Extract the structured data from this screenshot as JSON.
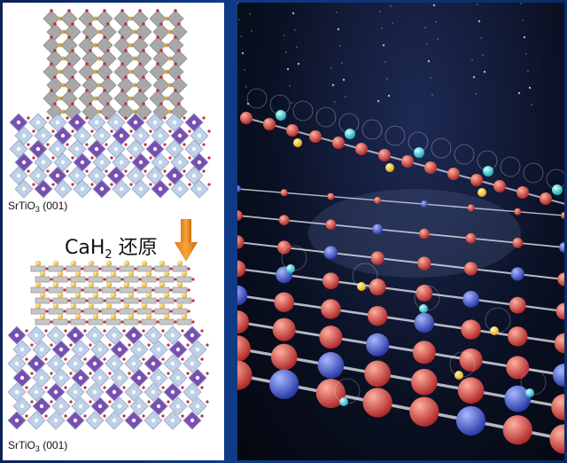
{
  "left_panel": {
    "top_label": {
      "prefix": "SrTiO",
      "sub": "3",
      "suffix": " (001)"
    },
    "reaction": {
      "prefix": "CaH",
      "sub": "2",
      "suffix": " 还原"
    },
    "bottom_label": {
      "prefix": "SrTiO",
      "sub": "3",
      "suffix": " (001)"
    }
  },
  "colors": {
    "arrow": "#f0961e",
    "octahedron_gray": "#9a9a9a",
    "octahedron_purple": "#6a3ca8",
    "octahedron_blue": "#b9cde6",
    "oxygen_red": "#c0303a",
    "sr_gold": "#d9a83a",
    "background_blue": "#0f3a86"
  },
  "icons": {
    "arrow": "down-arrow-icon"
  }
}
